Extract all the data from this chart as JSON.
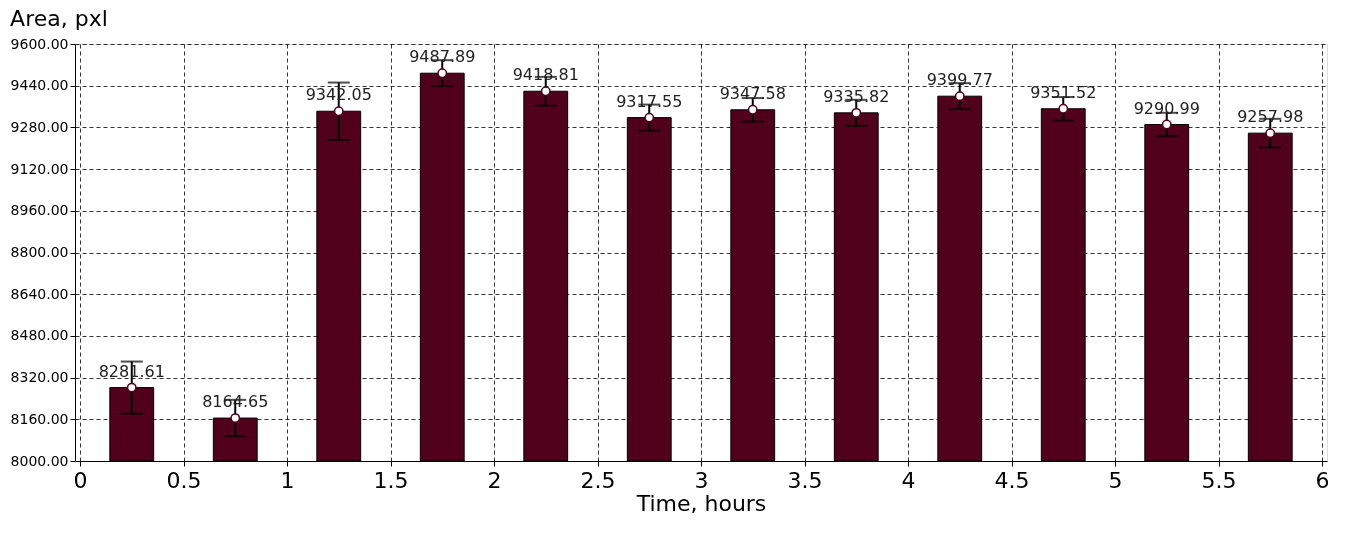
{
  "chart_data": {
    "type": "bar",
    "ylabel": "Area, pxl",
    "xlabel": "Time, hours",
    "x": [
      0.25,
      0.75,
      1.25,
      1.75,
      2.25,
      2.75,
      3.25,
      3.75,
      4.25,
      4.75,
      5.25,
      5.75
    ],
    "series": [
      {
        "color": "#50001a",
        "values": [
          8281.61,
          8164.65,
          9342.05,
          9487.89,
          9418.81,
          9317.55,
          9347.58,
          9335.82,
          9399.77,
          9351.52,
          9290.99,
          9257.98
        ],
        "errors": [
          100,
          70,
          110,
          50,
          55,
          50,
          45,
          50,
          50,
          45,
          45,
          55
        ],
        "value_labels": [
          "8281.61",
          "8164.65",
          "9342.05",
          "9487.89",
          "9418.81",
          "9317.55",
          "9347.58",
          "9335.82",
          "9399.77",
          "9351.52",
          "9290.99",
          "9257.98"
        ]
      },
      {
        "type": "scatter",
        "marker": "circle",
        "color": "#ffffff",
        "values": [
          8281.61,
          8164.65,
          9342.05,
          9487.89,
          9418.81,
          9317.55,
          9347.58,
          9335.82,
          9399.77,
          9351.52,
          9290.99,
          9257.98
        ]
      }
    ],
    "grid": true,
    "line_style": "dashed",
    "xlim": [
      0,
      6
    ],
    "xticks": [
      0,
      0.5,
      1,
      1.5,
      2,
      2.5,
      3,
      3.5,
      4,
      4.5,
      5,
      5.5,
      6
    ],
    "ylim": [
      8000,
      9600
    ],
    "yticks": [
      {
        "value": 8000,
        "label": "8000.00"
      },
      {
        "value": 8160,
        "label": "8160.00"
      },
      {
        "value": 8320,
        "label": "8320.00"
      },
      {
        "value": 8480,
        "label": "8480.00"
      },
      {
        "value": 8640,
        "label": "8640.00"
      },
      {
        "value": 8800,
        "label": "8800.00"
      },
      {
        "value": 8960,
        "label": "8960.00"
      },
      {
        "value": 9120,
        "label": "9120.00"
      },
      {
        "value": 9280,
        "label": "9280.00"
      },
      {
        "value": 9440,
        "label": "9440.00"
      },
      {
        "value": 9600,
        "label": "9600.00"
      }
    ]
  }
}
